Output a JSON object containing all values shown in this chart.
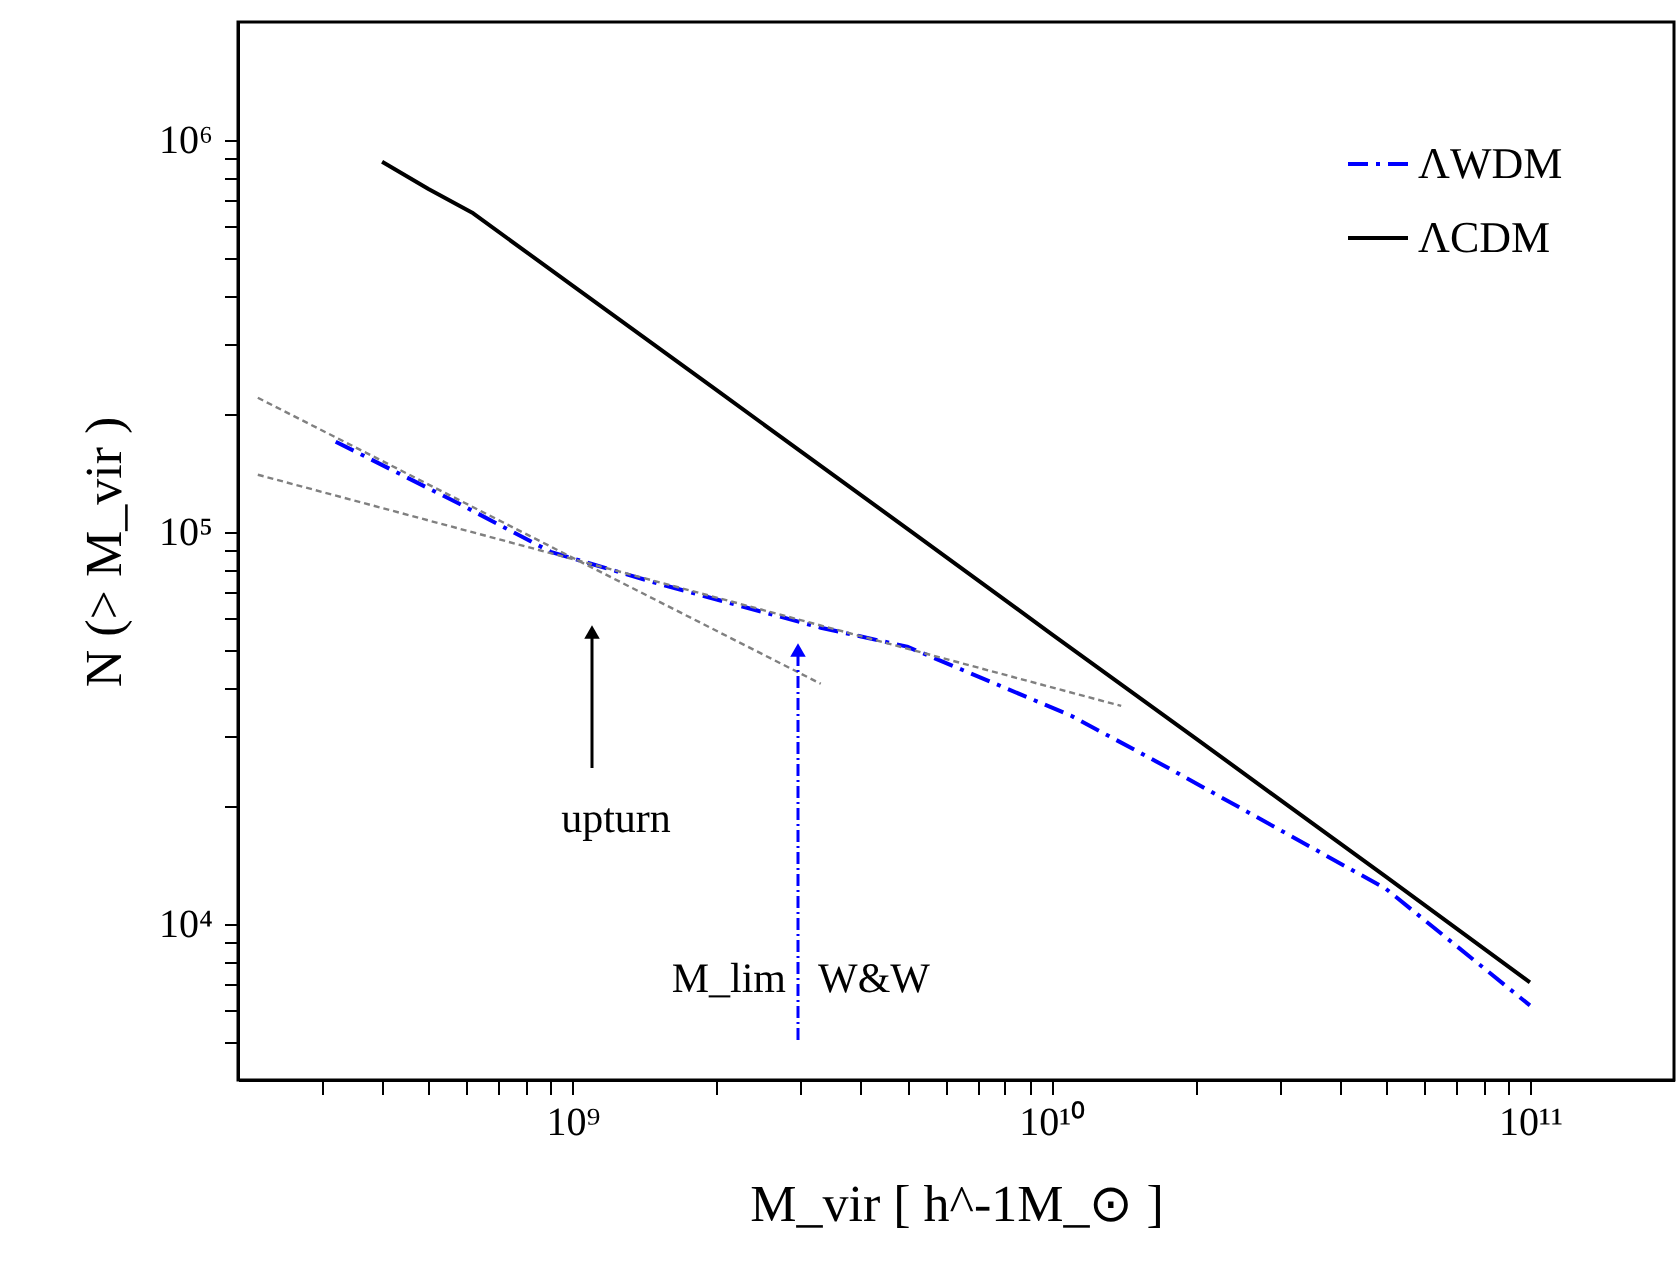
{
  "chart_data": {
    "type": "line",
    "xlabel": "M_vir [ h^-1M_⊙ ]",
    "ylabel": "N (> M_vir )",
    "log": "xy",
    "grid": false,
    "legend": "top right",
    "xlim": [
      200000000.0,
      200000000000.0
    ],
    "ylim": [
      4000.0,
      2000000.0
    ],
    "xticks": [
      {
        "value": 300000000.0,
        "label": null
      },
      {
        "value": 400000000.0,
        "label": null
      },
      {
        "value": 500000000.0,
        "label": null
      },
      {
        "value": 600000000.0,
        "label": null
      },
      {
        "value": 700000000.0,
        "label": null
      },
      {
        "value": 800000000.0,
        "label": null
      },
      {
        "value": 900000000.0,
        "label": null
      },
      {
        "value": 1000000000.0,
        "label": "10⁹"
      },
      {
        "value": 2000000000.0,
        "label": null
      },
      {
        "value": 3000000000.0,
        "label": null
      },
      {
        "value": 4000000000.0,
        "label": null
      },
      {
        "value": 5000000000.0,
        "label": null
      },
      {
        "value": 6000000000.0,
        "label": null
      },
      {
        "value": 7000000000.0,
        "label": null
      },
      {
        "value": 8000000000.0,
        "label": null
      },
      {
        "value": 9000000000.0,
        "label": null
      },
      {
        "value": 10000000000.0,
        "label": "10¹⁰"
      },
      {
        "value": 20000000000.0,
        "label": null
      },
      {
        "value": 30000000000.0,
        "label": null
      },
      {
        "value": 40000000000.0,
        "label": null
      },
      {
        "value": 50000000000.0,
        "label": null
      },
      {
        "value": 60000000000.0,
        "label": null
      },
      {
        "value": 70000000000.0,
        "label": null
      },
      {
        "value": 80000000000.0,
        "label": null
      },
      {
        "value": 90000000000.0,
        "label": null
      },
      {
        "value": 100000000000.0,
        "label": "10¹¹"
      }
    ],
    "yticks": [
      {
        "value": 5000.0,
        "label": null
      },
      {
        "value": 6000.0,
        "label": null
      },
      {
        "value": 7000.0,
        "label": null
      },
      {
        "value": 8000.0,
        "label": null
      },
      {
        "value": 9000.0,
        "label": null
      },
      {
        "value": 10000.0,
        "label": "10⁴"
      },
      {
        "value": 20000.0,
        "label": null
      },
      {
        "value": 30000.0,
        "label": null
      },
      {
        "value": 40000.0,
        "label": null
      },
      {
        "value": 50000.0,
        "label": null
      },
      {
        "value": 60000.0,
        "label": null
      },
      {
        "value": 70000.0,
        "label": null
      },
      {
        "value": 80000.0,
        "label": null
      },
      {
        "value": 90000.0,
        "label": null
      },
      {
        "value": 100000.0,
        "label": "10⁵"
      },
      {
        "value": 200000.0,
        "label": null
      },
      {
        "value": 300000.0,
        "label": null
      },
      {
        "value": 400000.0,
        "label": null
      },
      {
        "value": 500000.0,
        "label": null
      },
      {
        "value": 600000.0,
        "label": null
      },
      {
        "value": 700000.0,
        "label": null
      },
      {
        "value": 800000.0,
        "label": null
      },
      {
        "value": 900000.0,
        "label": null
      },
      {
        "value": 1000000.0,
        "label": "10⁶"
      }
    ],
    "series": [
      {
        "name": "ΛWDM",
        "color": "#0000ff",
        "line_style": "dashdot",
        "x": [
          320000000.0,
          580000000.0,
          900000000.0,
          1500000000.0,
          3300000000.0,
          5000000000.0,
          11000000000.0,
          18000000000.0,
          50000000000.0,
          100000000000.0
        ],
        "values": [
          170000.0,
          118000.0,
          89000.0,
          74000.0,
          57000.0,
          51000.0,
          34000.0,
          24600.0,
          12300.0,
          6200.0
        ]
      },
      {
        "name": "ΛCDM",
        "color": "#000000",
        "line_style": "solid",
        "x": [
          400000000.0,
          500000000.0,
          620000000.0,
          1000000000.0,
          2000000000.0,
          5000000000.0,
          10000000000.0,
          20000000000.0,
          50000000000.0,
          100000000000.0
        ],
        "values": [
          880000.0,
          750000.0,
          650000.0,
          425000.0,
          230000.0,
          102000.0,
          55000.0,
          29800.0,
          13200.0,
          7100.0
        ]
      },
      {
        "color": "#808080",
        "line_style": "dashed",
        "x": [
          220000000.0,
          3300000000.0
        ],
        "values": [
          220000.0,
          41000.0
        ]
      },
      {
        "color": "#808080",
        "line_style": "dashed",
        "x": [
          220000000.0,
          14000000000.0
        ],
        "values": [
          140000.0,
          36000.0
        ]
      }
    ],
    "annotations": [
      "upturn",
      "M_lim",
      "W&W"
    ]
  }
}
